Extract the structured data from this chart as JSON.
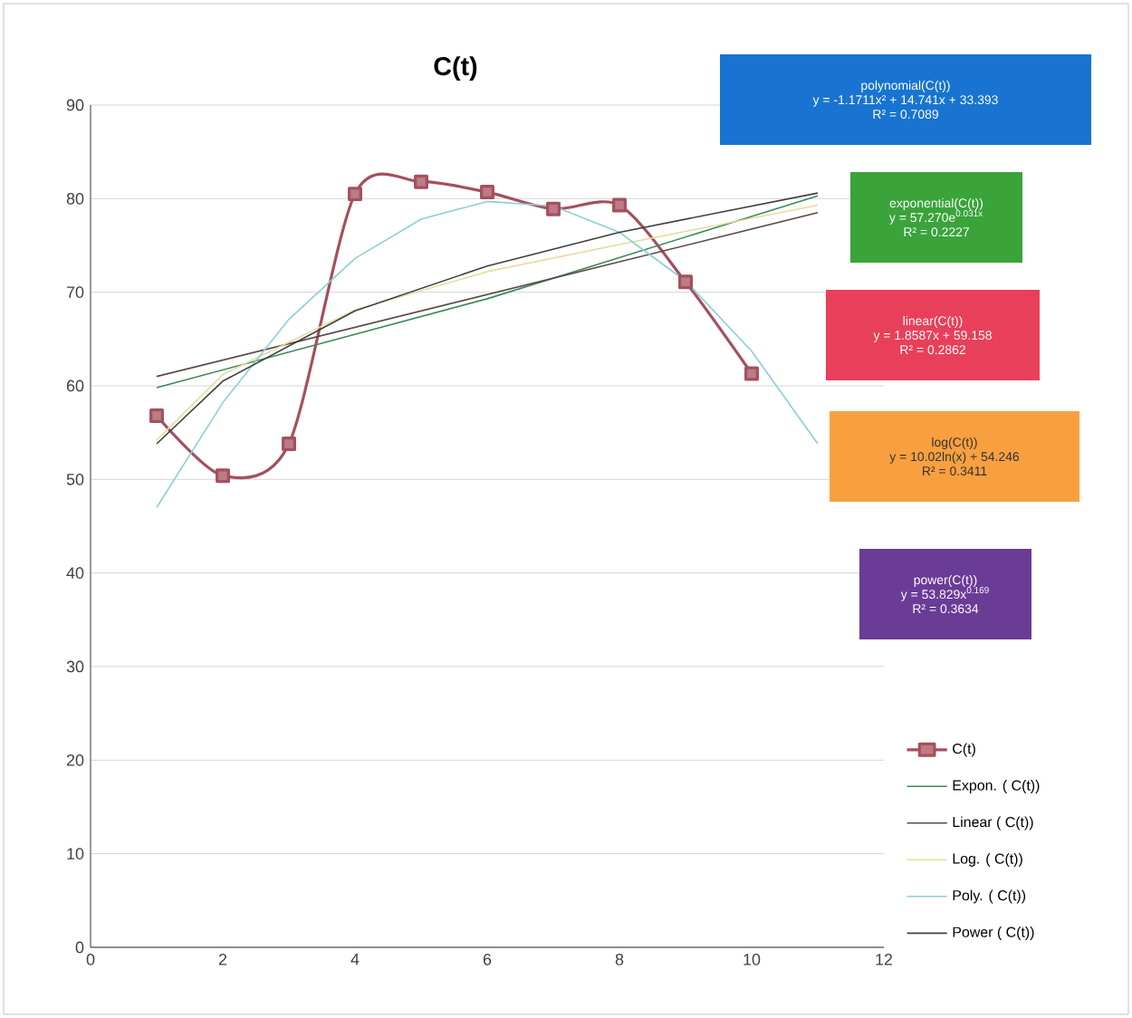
{
  "chart_data": {
    "type": "line",
    "title": "C(t)",
    "xlim": [
      0,
      12
    ],
    "xticks": [
      0,
      2,
      4,
      6,
      8,
      10,
      12
    ],
    "ylim": [
      0,
      90
    ],
    "yticks": [
      0,
      10,
      20,
      30,
      40,
      50,
      60,
      70,
      80,
      90
    ],
    "grid": "y",
    "legend": "bottom right",
    "series": [
      {
        "name": "C(t)",
        "color": "#a4505e",
        "marker": "square",
        "x": [
          1,
          2,
          3,
          4,
          5,
          6,
          7,
          8,
          9,
          10
        ],
        "values": [
          56.8,
          50.4,
          53.8,
          80.5,
          81.8,
          80.7,
          78.9,
          79.3,
          71.1,
          61.3
        ]
      },
      {
        "name": "Expon. (     C(t))",
        "color": "#3a8a5a",
        "marker": "none",
        "x": [
          1,
          6,
          11
        ],
        "values": [
          59.8,
          69.3,
          80.3
        ]
      },
      {
        "name": "Linear (     C(t))",
        "color": "#5a4848",
        "marker": "none",
        "x": [
          1,
          11
        ],
        "values": [
          61.0,
          78.5
        ]
      },
      {
        "name": "Log. (     C(t))",
        "color": "#e6dca0",
        "marker": "none",
        "x": [
          1,
          2,
          4,
          6,
          8,
          11
        ],
        "values": [
          54.2,
          61.2,
          68.1,
          72.2,
          75.1,
          79.3
        ]
      },
      {
        "name": "Poly. (     C(t))",
        "color": "#8ccfd6",
        "marker": "none",
        "x": [
          1,
          2,
          3,
          4,
          5,
          6,
          7,
          8,
          9,
          10,
          11
        ],
        "values": [
          47.0,
          58.2,
          67.1,
          73.6,
          77.8,
          79.7,
          79.2,
          76.4,
          71.2,
          63.7,
          53.8
        ]
      },
      {
        "name": "Power (     C(t))",
        "color": "#404040",
        "marker": "none",
        "x": [
          1,
          2,
          4,
          6,
          8,
          11
        ],
        "values": [
          53.8,
          60.5,
          68.0,
          72.8,
          76.4,
          80.6
        ]
      }
    ],
    "annotations": [
      "polynomial(C(t))",
      "y = -1.1711x² + 14.741x + 33.393",
      "R² = 0.7089",
      "exponential(C(t))",
      "y = 57.270e$^{0.031x}$",
      "R² = 0.2227",
      "linear(C(t))",
      "y = 1.8587x + 59.158",
      "R² = 0.2862",
      "log(C(t))",
      "y = 10.02ln(x) + 54.246",
      "R² = 0.3411",
      "power(C(t))",
      "y = 53.829x$^{0.169}$",
      "R² = 0.3634"
    ]
  }
}
